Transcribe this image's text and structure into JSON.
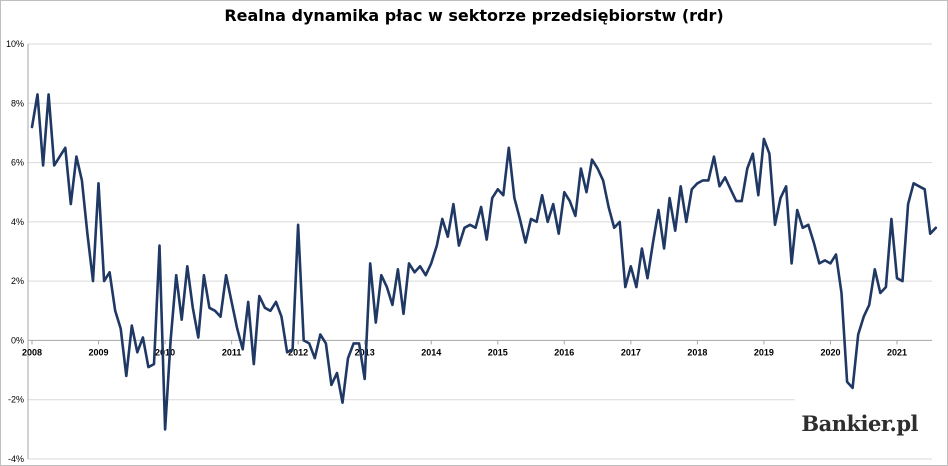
{
  "chart_data": {
    "type": "line",
    "title": "Realna dynamika płac w sektorze przedsiębiorstw (rdr)",
    "xlabel": "",
    "ylabel": "",
    "ylim": [
      -4,
      10
    ],
    "grid": true,
    "y_ticks": [
      "-4%",
      "-2%",
      "0%",
      "2%",
      "4%",
      "6%",
      "8%",
      "10%"
    ],
    "y_tick_values": [
      -4,
      -2,
      0,
      2,
      4,
      6,
      8,
      10
    ],
    "x_ticks": [
      "2008",
      "2009",
      "2010",
      "2011",
      "2012",
      "2013",
      "2014",
      "2015",
      "2016",
      "2017",
      "2018",
      "2019",
      "2020",
      "2021"
    ],
    "x_tick_values": [
      2008,
      2009,
      2010,
      2011,
      2012,
      2013,
      2014,
      2015,
      2016,
      2017,
      2018,
      2019,
      2020,
      2021
    ],
    "x_start": 2008,
    "x_step": 0.08333,
    "series": [
      {
        "color": "#1f3864",
        "values": [
          7.2,
          8.3,
          5.9,
          8.3,
          5.9,
          6.2,
          6.5,
          4.6,
          6.2,
          5.4,
          3.6,
          2.0,
          5.3,
          2.0,
          2.3,
          1.0,
          0.4,
          -1.2,
          0.5,
          -0.4,
          0.1,
          -0.9,
          -0.8,
          3.2,
          -3.0,
          0.0,
          2.2,
          0.7,
          2.5,
          1.1,
          0.1,
          2.2,
          1.1,
          1.0,
          0.8,
          2.2,
          1.3,
          0.4,
          -0.3,
          1.3,
          -0.8,
          1.5,
          1.1,
          1.0,
          1.3,
          0.8,
          -0.4,
          -0.3,
          3.9,
          0.0,
          -0.1,
          -0.6,
          0.2,
          -0.1,
          -1.5,
          -1.1,
          -2.1,
          -0.6,
          -0.1,
          -0.1,
          -1.3,
          2.6,
          0.6,
          2.2,
          1.8,
          1.2,
          2.4,
          0.9,
          2.6,
          2.3,
          2.5,
          2.2,
          2.6,
          3.2,
          4.1,
          3.5,
          4.6,
          3.2,
          3.8,
          3.9,
          3.8,
          4.5,
          3.4,
          4.8,
          5.1,
          4.9,
          6.5,
          4.8,
          4.1,
          3.3,
          4.1,
          4.0,
          4.9,
          4.0,
          4.6,
          3.6,
          5.0,
          4.7,
          4.2,
          5.8,
          5.0,
          6.1,
          5.8,
          5.4,
          4.5,
          3.8,
          4.0,
          1.8,
          2.5,
          1.8,
          3.1,
          2.1,
          3.3,
          4.4,
          3.1,
          4.8,
          3.7,
          5.2,
          4.0,
          5.1,
          5.3,
          5.4,
          5.4,
          6.2,
          5.2,
          5.5,
          5.1,
          4.7,
          4.7,
          5.8,
          6.3,
          4.9,
          6.8,
          6.3,
          3.9,
          4.8,
          5.2,
          2.6,
          4.4,
          3.8,
          3.9,
          3.3,
          2.6,
          2.7,
          2.6,
          2.9,
          1.6,
          -1.4,
          -1.6,
          0.2,
          0.8,
          1.2,
          2.4,
          1.6,
          1.8,
          4.1,
          2.1,
          2.0,
          4.6,
          5.3,
          5.2,
          5.1,
          3.6,
          3.8
        ]
      }
    ]
  },
  "watermark": "Bankier.pl"
}
